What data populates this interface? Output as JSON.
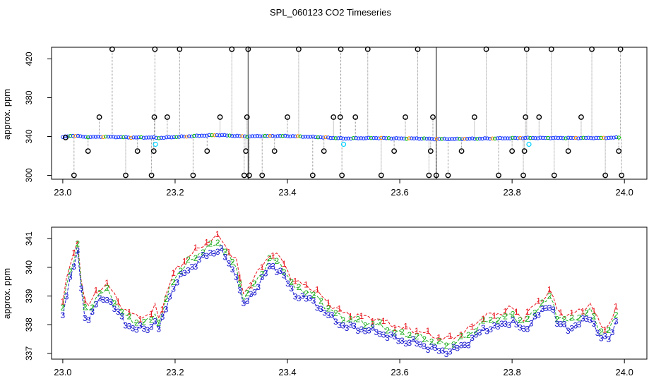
{
  "figure_title": "SPL_060123  CO2 Timeseries",
  "chart_data": [
    {
      "type": "scatter",
      "panel": "top",
      "xlabel": "",
      "ylabel": "approx. ppm",
      "xlim": [
        22.98,
        24.04
      ],
      "ylim": [
        296,
        432
      ],
      "xticks": [
        23.0,
        23.2,
        23.4,
        23.6,
        23.8,
        24.0
      ],
      "xtick_labels": [
        "23.0",
        "23.2",
        "23.4",
        "23.6",
        "23.8",
        "24.0"
      ],
      "yticks": [
        300,
        340,
        380,
        420
      ],
      "ytick_labels": [
        "300",
        "340",
        "380",
        "420"
      ],
      "grid": false,
      "legend": "none",
      "colors": {
        "baseline": "#1f3fff",
        "green": "#00c000",
        "orange": "#ff8c00",
        "outlier": "#000000",
        "cyan": "#00d0ff",
        "drop": "#909090"
      },
      "baseline_x": [
        23.0,
        23.02,
        23.04,
        23.08,
        23.12,
        23.16,
        23.17,
        23.2,
        23.25,
        23.28,
        23.31,
        23.33,
        23.35,
        23.4,
        23.45,
        23.5,
        23.56,
        23.6,
        23.64,
        23.66,
        23.7,
        23.76,
        23.82,
        23.84,
        23.9,
        23.96,
        23.99
      ],
      "baseline_y": [
        339.5,
        341.0,
        339.5,
        339.8,
        339.0,
        339.0,
        338.5,
        339.5,
        341.0,
        341.5,
        340.5,
        340.0,
        340.5,
        340.5,
        339.5,
        338.0,
        338.5,
        338.0,
        338.0,
        337.5,
        337.5,
        338.0,
        338.5,
        338.5,
        338.5,
        338.5,
        339.0
      ],
      "outlier_x": [
        23.005,
        23.02,
        23.045,
        23.065,
        23.088,
        23.112,
        23.133,
        23.158,
        23.162,
        23.163,
        23.164,
        23.186,
        23.208,
        23.232,
        23.257,
        23.28,
        23.301,
        23.323,
        23.326,
        23.328,
        23.33,
        23.332,
        23.355,
        23.377,
        23.4,
        23.42,
        23.445,
        23.465,
        23.482,
        23.494,
        23.495,
        23.497,
        23.521,
        23.543,
        23.567,
        23.59,
        23.61,
        23.632,
        23.652,
        23.655,
        23.659,
        23.665,
        23.686,
        23.71,
        23.733,
        23.754,
        23.776,
        23.8,
        23.82,
        23.822,
        23.824,
        23.826,
        23.848,
        23.87,
        23.875,
        23.9,
        23.923,
        23.942,
        23.966,
        23.99,
        23.993,
        23.995
      ],
      "outlier_y": [
        339,
        300,
        325,
        360,
        430,
        300,
        325,
        300,
        325,
        360,
        430,
        360,
        430,
        300,
        325,
        360,
        430,
        300,
        325,
        360,
        430,
        300,
        300,
        325,
        360,
        430,
        300,
        325,
        360,
        360,
        430,
        300,
        360,
        430,
        300,
        325,
        360,
        430,
        300,
        325,
        360,
        300,
        300,
        325,
        360,
        430,
        300,
        325,
        300,
        325,
        360,
        430,
        360,
        430,
        300,
        325,
        360,
        430,
        300,
        325,
        430,
        300
      ],
      "cyan_x": [
        23.165,
        23.5,
        23.83
      ],
      "cyan_y": [
        332,
        332,
        332
      ],
      "segment_breaks": [
        23.33,
        23.665
      ]
    },
    {
      "type": "line",
      "panel": "bottom",
      "xlabel": "",
      "ylabel": "approx. ppm",
      "xlim": [
        22.98,
        24.04
      ],
      "ylim": [
        336.8,
        341.4
      ],
      "xticks": [
        23.0,
        23.2,
        23.4,
        23.6,
        23.8,
        24.0
      ],
      "xtick_labels": [
        "23.0",
        "23.2",
        "23.4",
        "23.6",
        "23.8",
        "24.0"
      ],
      "yticks": [
        337,
        338,
        339,
        340,
        341
      ],
      "ytick_labels": [
        "337",
        "338",
        "339",
        "340",
        "341"
      ],
      "grid": false,
      "legend": "none",
      "series": [
        {
          "name": "1",
          "color": "#e8141c",
          "dy": 0.3,
          "label": "1"
        },
        {
          "name": "2",
          "color": "#22b022",
          "dy": 0.1,
          "label": "2"
        },
        {
          "name": "3",
          "color": "#1a1ad0",
          "dy": -0.15,
          "label": "3"
        }
      ],
      "x": [
        23.0,
        23.01,
        23.02,
        23.025,
        23.03,
        23.035,
        23.045,
        23.06,
        23.08,
        23.1,
        23.11,
        23.13,
        23.15,
        23.16,
        23.165,
        23.17,
        23.19,
        23.2,
        23.22,
        23.25,
        23.27,
        23.28,
        23.3,
        23.31,
        23.32,
        23.33,
        23.35,
        23.37,
        23.39,
        23.41,
        23.43,
        23.45,
        23.47,
        23.5,
        23.53,
        23.56,
        23.6,
        23.63,
        23.66,
        23.68,
        23.7,
        23.72,
        23.75,
        23.78,
        23.8,
        23.82,
        23.84,
        23.86,
        23.87,
        23.88,
        23.9,
        23.92,
        23.94,
        23.96,
        23.975,
        23.985
      ],
      "values": [
        338.5,
        339.6,
        340.2,
        340.8,
        340.3,
        338.6,
        338.3,
        338.9,
        339.1,
        338.5,
        338.2,
        338.0,
        338.0,
        338.1,
        338.4,
        337.9,
        339.1,
        339.6,
        340.0,
        340.5,
        340.7,
        340.8,
        340.1,
        339.9,
        338.8,
        339.0,
        339.6,
        340.2,
        340.0,
        339.2,
        339.1,
        338.9,
        338.5,
        338.1,
        338.0,
        337.9,
        337.6,
        337.5,
        337.3,
        337.2,
        337.3,
        337.5,
        338.0,
        338.1,
        338.3,
        337.9,
        338.4,
        338.7,
        338.9,
        338.2,
        338.0,
        338.2,
        338.4,
        337.6,
        337.7,
        338.3
      ]
    }
  ]
}
